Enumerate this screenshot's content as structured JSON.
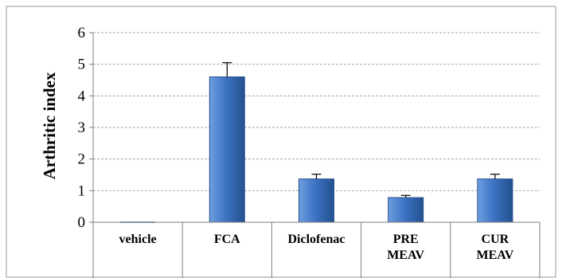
{
  "chart_data": {
    "type": "bar",
    "categories": [
      [
        "vehicle"
      ],
      [
        "FCA"
      ],
      [
        "Diclofenac"
      ],
      [
        "PRE",
        "MEAV"
      ],
      [
        "CUR",
        "MEAV"
      ]
    ],
    "values": [
      0,
      4.6,
      1.37,
      0.78,
      1.37
    ],
    "error": [
      0,
      0.45,
      0.15,
      0.07,
      0.15
    ],
    "title": "",
    "xlabel": "",
    "ylabel": "Arthritic index",
    "ylim": [
      0,
      6
    ],
    "yticks": [
      0,
      1,
      2,
      3,
      4,
      5,
      6
    ],
    "grid": true,
    "legend": "none",
    "colors": {
      "bar_light": "#6f9ee0",
      "bar_mid": "#3d74c4",
      "bar_dark": "#24508f",
      "grid": "#a6a6a6",
      "axis": "#7f7f7f",
      "border": "#9a9a9a"
    }
  }
}
